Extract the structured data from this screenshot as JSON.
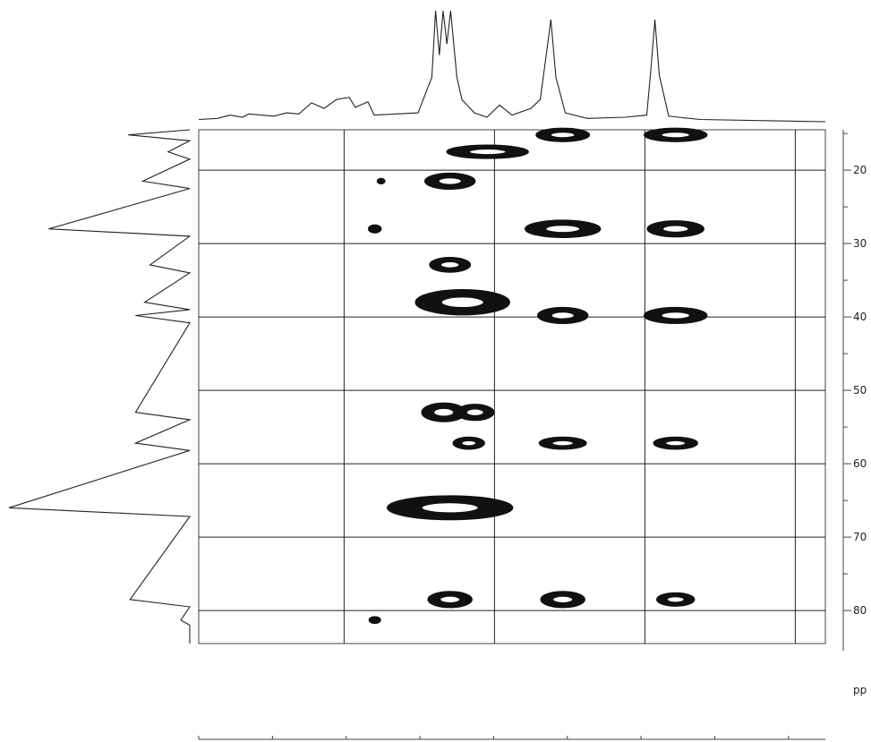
{
  "chart_data": {
    "type": "scatter",
    "title": "",
    "xlabel": "",
    "ylabel": "",
    "y_axis": {
      "ticks": [
        20,
        30,
        40,
        50,
        60,
        70,
        80
      ],
      "tick_labels": [
        "20",
        "30",
        "40",
        "50",
        "60",
        "70",
        "80"
      ],
      "unit_label": "pp",
      "ylim": [
        14.5,
        84.5
      ],
      "reversed": true
    },
    "grid": true,
    "series": [
      {
        "values": [
          {
            "x": 0.581,
            "y": 15.2,
            "w": 0.085,
            "h": 1.0
          },
          {
            "x": 0.761,
            "y": 15.2,
            "w": 0.1,
            "h": 1.0
          },
          {
            "x": 0.461,
            "y": 17.5,
            "w": 0.13,
            "h": 1.0
          },
          {
            "x": 0.401,
            "y": 21.5,
            "w": 0.08,
            "h": 1.2
          },
          {
            "x": 0.291,
            "y": 21.5,
            "w": 0.012,
            "h": 0.4
          },
          {
            "x": 0.581,
            "y": 28.0,
            "w": 0.12,
            "h": 1.3
          },
          {
            "x": 0.761,
            "y": 28.0,
            "w": 0.09,
            "h": 1.2
          },
          {
            "x": 0.281,
            "y": 28.0,
            "w": 0.02,
            "h": 0.6
          },
          {
            "x": 0.401,
            "y": 32.9,
            "w": 0.065,
            "h": 1.1
          },
          {
            "x": 0.421,
            "y": 38.0,
            "w": 0.15,
            "h": 1.9
          },
          {
            "x": 0.581,
            "y": 39.8,
            "w": 0.08,
            "h": 1.2
          },
          {
            "x": 0.761,
            "y": 39.8,
            "w": 0.1,
            "h": 1.2
          },
          {
            "x": 0.391,
            "y": 53.0,
            "w": 0.07,
            "h": 1.4
          },
          {
            "x": 0.441,
            "y": 53.0,
            "w": 0.06,
            "h": 1.2
          },
          {
            "x": 0.431,
            "y": 57.2,
            "w": 0.05,
            "h": 0.9
          },
          {
            "x": 0.581,
            "y": 57.2,
            "w": 0.075,
            "h": 0.9
          },
          {
            "x": 0.761,
            "y": 57.2,
            "w": 0.07,
            "h": 0.9
          },
          {
            "x": 0.401,
            "y": 66.0,
            "w": 0.2,
            "h": 1.8
          },
          {
            "x": 0.401,
            "y": 78.5,
            "w": 0.07,
            "h": 1.2
          },
          {
            "x": 0.581,
            "y": 78.5,
            "w": 0.07,
            "h": 1.2
          },
          {
            "x": 0.761,
            "y": 78.5,
            "w": 0.06,
            "h": 1.0
          },
          {
            "x": 0.281,
            "y": 81.3,
            "w": 0.018,
            "h": 0.5
          }
        ]
      }
    ],
    "top_projection": [
      [
        0.0,
        0.02
      ],
      [
        0.03,
        0.03
      ],
      [
        0.05,
        0.06
      ],
      [
        0.07,
        0.04
      ],
      [
        0.08,
        0.07
      ],
      [
        0.1,
        0.06
      ],
      [
        0.12,
        0.05
      ],
      [
        0.14,
        0.08
      ],
      [
        0.16,
        0.07
      ],
      [
        0.18,
        0.17
      ],
      [
        0.2,
        0.12
      ],
      [
        0.22,
        0.2
      ],
      [
        0.24,
        0.22
      ],
      [
        0.25,
        0.13
      ],
      [
        0.27,
        0.18
      ],
      [
        0.28,
        0.06
      ],
      [
        0.35,
        0.08
      ],
      [
        0.372,
        0.4
      ],
      [
        0.378,
        1.0
      ],
      [
        0.384,
        0.6
      ],
      [
        0.39,
        1.0
      ],
      [
        0.396,
        0.7
      ],
      [
        0.402,
        1.0
      ],
      [
        0.412,
        0.4
      ],
      [
        0.42,
        0.2
      ],
      [
        0.44,
        0.08
      ],
      [
        0.46,
        0.04
      ],
      [
        0.48,
        0.15
      ],
      [
        0.5,
        0.06
      ],
      [
        0.53,
        0.12
      ],
      [
        0.545,
        0.2
      ],
      [
        0.555,
        0.62
      ],
      [
        0.562,
        0.92
      ],
      [
        0.57,
        0.4
      ],
      [
        0.585,
        0.08
      ],
      [
        0.62,
        0.03
      ],
      [
        0.68,
        0.04
      ],
      [
        0.715,
        0.06
      ],
      [
        0.722,
        0.5
      ],
      [
        0.728,
        0.92
      ],
      [
        0.735,
        0.42
      ],
      [
        0.75,
        0.05
      ],
      [
        0.8,
        0.02
      ],
      [
        1.0,
        0.0
      ]
    ],
    "left_projection": [
      [
        14.5,
        0.0
      ],
      [
        15.2,
        0.34
      ],
      [
        16.0,
        0.0
      ],
      [
        17.5,
        0.12
      ],
      [
        18.5,
        0.0
      ],
      [
        21.5,
        0.26
      ],
      [
        22.5,
        0.0
      ],
      [
        28.0,
        0.78
      ],
      [
        29.0,
        0.0
      ],
      [
        32.9,
        0.22
      ],
      [
        34.0,
        0.0
      ],
      [
        38.0,
        0.25
      ],
      [
        39.0,
        0.0
      ],
      [
        39.8,
        0.3
      ],
      [
        40.8,
        0.0
      ],
      [
        53.0,
        0.3
      ],
      [
        54.0,
        0.0
      ],
      [
        57.2,
        0.3
      ],
      [
        58.2,
        0.0
      ],
      [
        66.0,
        1.0
      ],
      [
        67.2,
        0.0
      ],
      [
        78.5,
        0.33
      ],
      [
        79.5,
        0.0
      ],
      [
        81.3,
        0.05
      ],
      [
        82.0,
        0.0
      ],
      [
        84.5,
        0.0
      ]
    ]
  }
}
